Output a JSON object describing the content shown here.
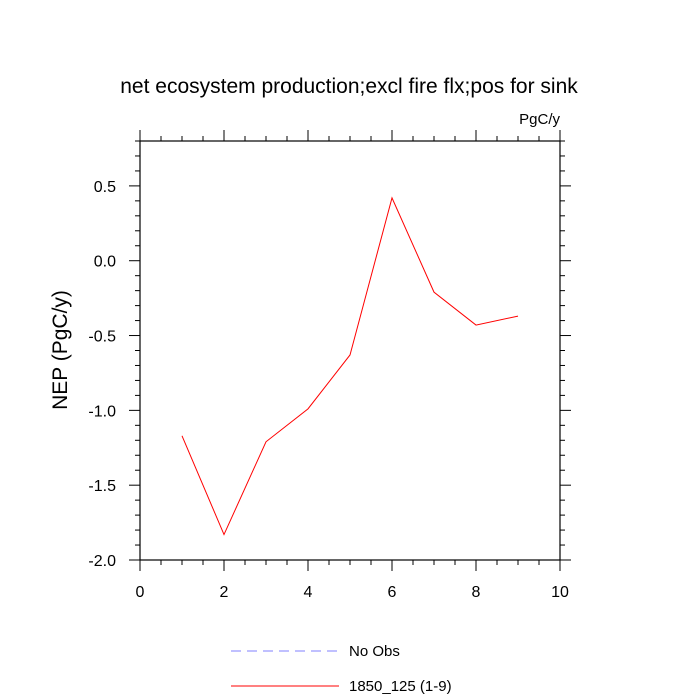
{
  "chart_data": {
    "type": "line",
    "title": "net ecosystem production;excl fire flx;pos for sink",
    "units_label": "PgC/y",
    "ylabel": "NEP  (PgC/y)",
    "xlabel": "",
    "xlim": [
      0,
      10
    ],
    "ylim": [
      -2.0,
      0.8
    ],
    "x_ticks": [
      0,
      2,
      4,
      6,
      8,
      10
    ],
    "x_tick_labels": [
      "0",
      "2",
      "4",
      "6",
      "8",
      "10"
    ],
    "y_ticks": [
      0.5,
      0.0,
      -0.5,
      -1.0,
      -1.5,
      -2.0
    ],
    "y_tick_labels": [
      "0.5",
      "0.0",
      "-0.5",
      "-1.0",
      "-1.5",
      "-2.0"
    ],
    "grid": false,
    "legend_position": "bottom",
    "series": [
      {
        "name": "1850_125 (1-9)",
        "color": "#ff0000",
        "style": "solid",
        "x": [
          1,
          2,
          3,
          4,
          5,
          6,
          7,
          8,
          9
        ],
        "y": [
          -1.17,
          -1.83,
          -1.21,
          -0.99,
          -0.63,
          0.42,
          -0.21,
          -0.43,
          -0.37
        ]
      }
    ],
    "legend": [
      {
        "name": "No Obs",
        "color": "#8080ff",
        "style": "dashed"
      },
      {
        "name": "1850_125 (1-9)",
        "color": "#ff0000",
        "style": "solid"
      }
    ]
  }
}
